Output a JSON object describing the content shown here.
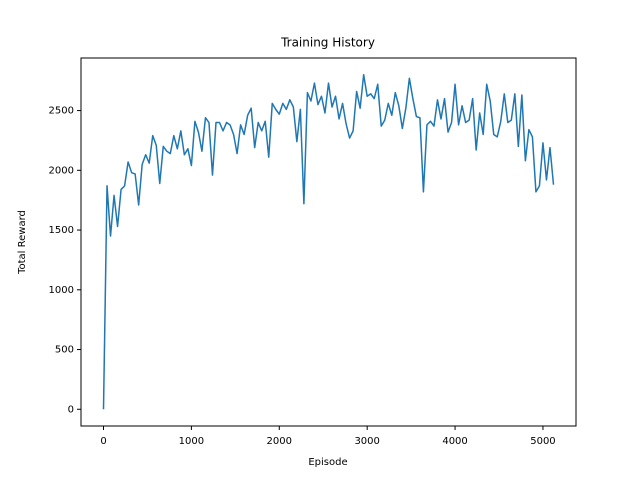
{
  "chart_data": {
    "type": "line",
    "title": "Training History",
    "x_label": "Episode",
    "y_label": "Total Reward",
    "x": [
      0,
      40,
      80,
      120,
      160,
      200,
      240,
      280,
      320,
      360,
      400,
      440,
      480,
      520,
      560,
      600,
      640,
      680,
      720,
      760,
      800,
      840,
      880,
      920,
      960,
      1000,
      1040,
      1080,
      1120,
      1160,
      1200,
      1240,
      1280,
      1320,
      1360,
      1400,
      1440,
      1480,
      1520,
      1560,
      1600,
      1640,
      1680,
      1720,
      1760,
      1800,
      1840,
      1880,
      1920,
      1960,
      2000,
      2040,
      2080,
      2120,
      2160,
      2200,
      2240,
      2280,
      2320,
      2360,
      2400,
      2440,
      2480,
      2520,
      2560,
      2600,
      2640,
      2680,
      2720,
      2760,
      2800,
      2840,
      2880,
      2920,
      2960,
      3000,
      3040,
      3080,
      3120,
      3160,
      3200,
      3240,
      3280,
      3320,
      3360,
      3400,
      3440,
      3480,
      3520,
      3560,
      3600,
      3640,
      3680,
      3720,
      3760,
      3800,
      3840,
      3880,
      3920,
      3960,
      4000,
      4040,
      4080,
      4120,
      4160,
      4200,
      4240,
      4280,
      4320,
      4360,
      4400,
      4440,
      4480,
      4520,
      4560,
      4600,
      4640,
      4680,
      4720,
      4760,
      4800,
      4840,
      4880,
      4920,
      4960,
      5000,
      5040,
      5080,
      5120
    ],
    "series": [
      {
        "name": "Total Reward",
        "color": "#1f77b4",
        "values": [
          0,
          1870,
          1450,
          1790,
          1530,
          1840,
          1870,
          2070,
          1980,
          1970,
          1710,
          2050,
          2130,
          2060,
          2290,
          2210,
          1890,
          2200,
          2160,
          2140,
          2290,
          2180,
          2330,
          2130,
          2180,
          2040,
          2410,
          2320,
          2160,
          2440,
          2400,
          1960,
          2400,
          2400,
          2330,
          2400,
          2380,
          2300,
          2140,
          2380,
          2300,
          2460,
          2520,
          2190,
          2400,
          2330,
          2410,
          2110,
          2560,
          2510,
          2470,
          2560,
          2510,
          2590,
          2530,
          2240,
          2510,
          1720,
          2650,
          2580,
          2730,
          2550,
          2620,
          2480,
          2730,
          2530,
          2620,
          2430,
          2560,
          2390,
          2270,
          2330,
          2660,
          2520,
          2800,
          2620,
          2640,
          2600,
          2720,
          2370,
          2420,
          2560,
          2460,
          2650,
          2540,
          2350,
          2520,
          2770,
          2600,
          2450,
          2440,
          1820,
          2380,
          2410,
          2370,
          2590,
          2430,
          2600,
          2320,
          2400,
          2720,
          2380,
          2540,
          2400,
          2420,
          2600,
          2170,
          2480,
          2300,
          2720,
          2580,
          2300,
          2280,
          2410,
          2640,
          2400,
          2420,
          2640,
          2200,
          2630,
          2080,
          2340,
          2280,
          1820,
          1870,
          2230,
          1920,
          2190,
          1880
        ]
      }
    ],
    "xlim": [
      -256,
      5376
    ],
    "ylim": [
      -140,
      2940
    ],
    "xticks": [
      0,
      1000,
      2000,
      3000,
      4000,
      5000
    ],
    "yticks": [
      0,
      500,
      1000,
      1500,
      2000,
      2500
    ]
  }
}
